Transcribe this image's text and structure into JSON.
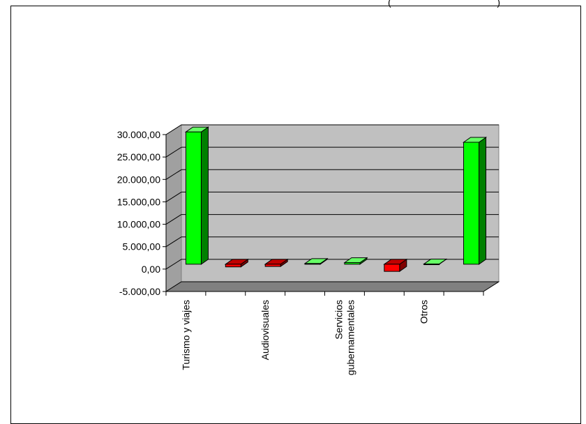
{
  "title_fragment": "(",
  "title_fragment_right": ")",
  "chart_data": {
    "type": "bar",
    "style": "3d-column",
    "categories": [
      "Turismo y viajes",
      "",
      "Audiovisuales",
      "",
      "Servicios gubernamentales",
      "",
      "Otros",
      ""
    ],
    "values": [
      29500,
      -600,
      -500,
      150,
      350,
      -1600,
      50,
      27200
    ],
    "ylim": [
      -5000,
      30000
    ],
    "yticks": [
      -5000,
      0,
      5000,
      10000,
      15000,
      20000,
      25000,
      30000
    ],
    "ytick_labels": [
      "-5.000,00",
      "0,00",
      "5.000,00",
      "10.000,00",
      "15.000,00",
      "20.000,00",
      "25.000,00",
      "30.000,00"
    ],
    "grid": true,
    "colors": {
      "positive": "#00ff00",
      "negative": "#ff0000",
      "wall": "#c0c0c0",
      "floor": "#808080"
    }
  }
}
